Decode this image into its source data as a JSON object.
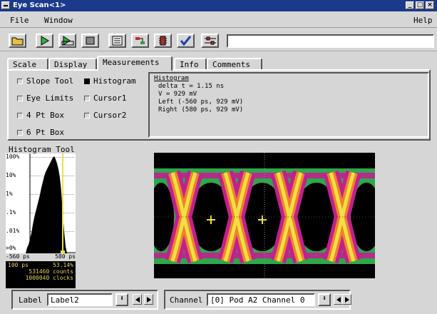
{
  "window": {
    "title": "Eye Scan<1>"
  },
  "menu": {
    "file": "File",
    "window": "Window",
    "help": "Help"
  },
  "toolbar": {
    "buttons": [
      "open-icon",
      "run-icon",
      "run-repetitive-icon",
      "stop-icon",
      "listing-icon",
      "format-icon",
      "chip-icon",
      "check-icon",
      "settings-icon"
    ]
  },
  "tabs": [
    "Scale",
    "Display",
    "Measurements",
    "Info",
    "Comments"
  ],
  "active_tab": "Measurements",
  "measurements": {
    "slope_tool": "Slope Tool",
    "histogram": "Histogram",
    "eye_limits": "Eye Limits",
    "cursor1": "Cursor1",
    "four_pt_box": "4 Pt Box",
    "cursor2": "Cursor2",
    "six_pt_box": "6 Pt Box"
  },
  "info_panel": {
    "heading": "Histogram",
    "line1": "delta t = 1.15 ns",
    "line2": "V = 929 mV",
    "line3": "Left (-560 ps, 929 mV)",
    "line4": "Right (580 ps, 929 mV)"
  },
  "histogram_tool": {
    "title": "Histogram Tool",
    "y_labels": [
      "100%",
      "10%",
      "1%",
      ".1%",
      ".01%",
      ">0%"
    ],
    "x_left": "-560 ps",
    "x_right": "580 ps",
    "stat_time": "100 ps",
    "stat_pct": "53.14%",
    "stat_counts": "531460 counts",
    "stat_clocks": "1000040 clocks"
  },
  "bottom": {
    "label_caption": "Label",
    "label_value": "Label2",
    "channel_caption": "Channel",
    "channel_value": "[0] Pod A2 Channel 0"
  },
  "colors": {
    "titlebar": "#1c3a8c",
    "eye_green": "#2ea84a",
    "eye_magenta": "#c02090",
    "eye_yellow": "#f0e040",
    "eye_orange": "#f08030"
  }
}
